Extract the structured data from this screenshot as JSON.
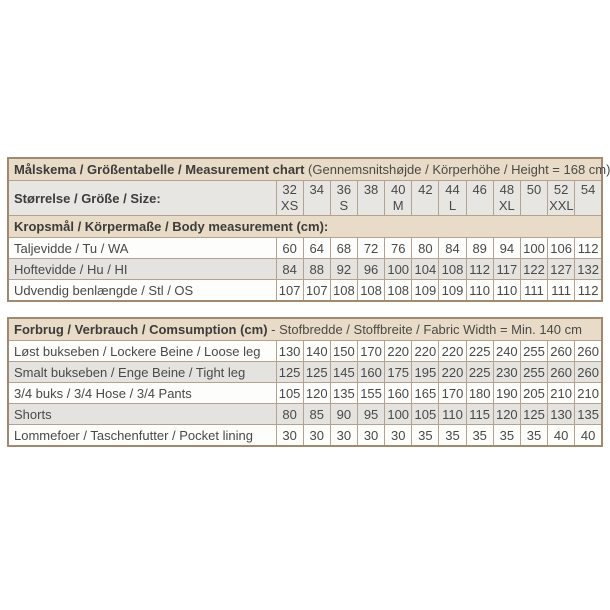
{
  "colors": {
    "table_border": "#a1896f",
    "cell_border": "#b5a28e",
    "section_header_bg": "#e8dbc8",
    "size_row_bg": "#e8e6e3",
    "row_bg": "#fdfdfc",
    "row_alt_bg": "#e5e3e0",
    "text": "#474644"
  },
  "chart_data": {
    "type": "table",
    "header": {
      "title_bold": "Målskema / Größentabelle / Measurement chart",
      "title_rest": " (Gennemsnitshøjde / Körperhöhe / Height = 168 cm)"
    },
    "size_header": {
      "label": "Størrelse / Größe / Size:",
      "sizes": [
        "32",
        "34",
        "36",
        "38",
        "40",
        "42",
        "44",
        "46",
        "48",
        "50",
        "52",
        "54"
      ],
      "letters": [
        "XS",
        "",
        "S",
        "",
        "M",
        "",
        "L",
        "",
        "XL",
        "",
        "XXL",
        ""
      ]
    },
    "body_section": {
      "title": "Kropsmål / Körpermaße / Body measurement (cm):",
      "rows": [
        {
          "label": "Taljevidde / Tu / WA",
          "values": [
            60,
            64,
            68,
            72,
            76,
            80,
            84,
            89,
            94,
            100,
            106,
            112
          ]
        },
        {
          "label": "Hoftevidde / Hu / HI",
          "values": [
            84,
            88,
            92,
            96,
            100,
            104,
            108,
            112,
            117,
            122,
            127,
            132
          ]
        },
        {
          "label": "Udvendig benlængde / Stl / OS",
          "values": [
            107,
            107,
            108,
            108,
            108,
            109,
            109,
            110,
            110,
            111,
            111,
            112
          ]
        }
      ]
    },
    "consumption_section": {
      "title_bold": "Forbrug / Verbrauch / Comsumption (cm)",
      "title_rest": " - Stofbredde / Stoffbreite / Fabric Width = Min. 140 cm",
      "rows": [
        {
          "label": "Løst bukseben / Lockere Beine / Loose leg",
          "values": [
            130,
            140,
            150,
            170,
            220,
            220,
            220,
            225,
            240,
            255,
            260,
            260
          ]
        },
        {
          "label": "Smalt bukseben / Enge Beine / Tight leg",
          "values": [
            125,
            125,
            145,
            160,
            175,
            195,
            220,
            225,
            230,
            255,
            260,
            260
          ]
        },
        {
          "label": "3/4 buks / 3/4 Hose / 3/4 Pants",
          "values": [
            105,
            120,
            135,
            155,
            160,
            165,
            170,
            180,
            190,
            205,
            210,
            210
          ]
        },
        {
          "label": "Shorts",
          "values": [
            80,
            85,
            90,
            95,
            100,
            105,
            110,
            115,
            120,
            125,
            130,
            135
          ]
        },
        {
          "label": "Lommefoer / Taschenfutter / Pocket lining",
          "values": [
            30,
            30,
            30,
            30,
            30,
            35,
            35,
            35,
            35,
            35,
            40,
            40
          ]
        }
      ]
    }
  }
}
